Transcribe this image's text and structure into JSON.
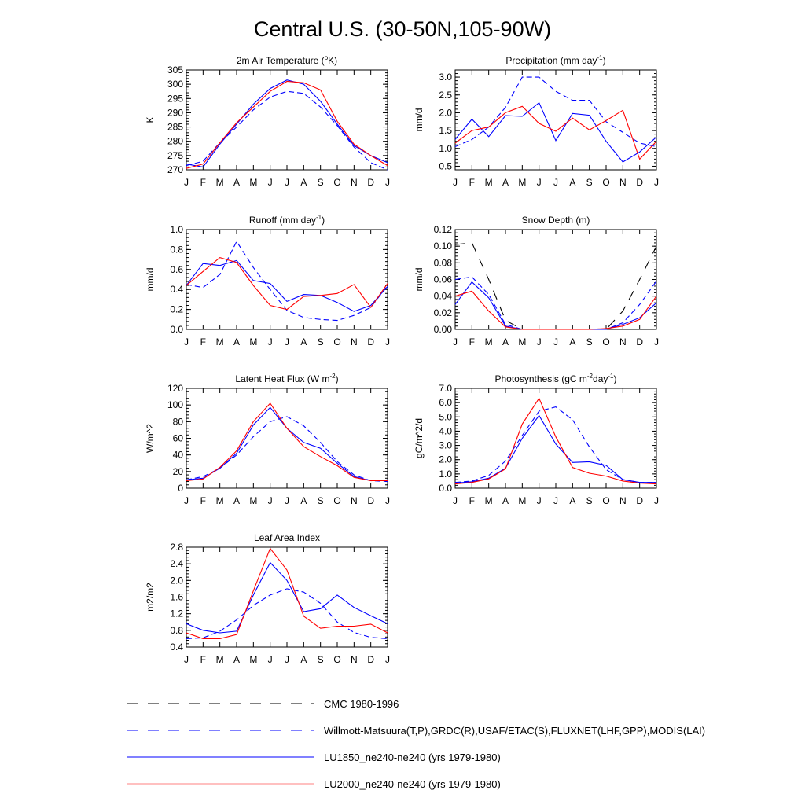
{
  "figure": {
    "title": "Central U.S. (30-50N,105-90W)"
  },
  "months": [
    "J",
    "F",
    "M",
    "A",
    "M",
    "J",
    "J",
    "A",
    "S",
    "O",
    "N",
    "D",
    "J"
  ],
  "series_styles": {
    "cmc": {
      "color": "#000000",
      "dash": "long"
    },
    "obs": {
      "color": "#0000ff",
      "dash": "medium"
    },
    "lu1850": {
      "color": "#0000ff",
      "dash": "solid"
    },
    "lu2000": {
      "color": "#ff0000",
      "dash": "solid"
    }
  },
  "legend": [
    {
      "key": "cmc",
      "label": "CMC 1980-1996"
    },
    {
      "key": "obs",
      "label": "Willmott-Matsuura(T,P),GRDC(R),USAF/ETAC(S),FLUXNET(LHF,GPP),MODIS(LAI)"
    },
    {
      "key": "lu1850",
      "label": "LU1850_ne240-ne240 (yrs 1979-1980)"
    },
    {
      "key": "lu2000",
      "label": "LU2000_ne240-ne240 (yrs 1979-1980)"
    }
  ],
  "chart_data": [
    {
      "type": "line",
      "id": "temperature",
      "title": "2m Air Temperature (",
      "title_sup": "o",
      "title_after": "K)",
      "ylabel": "K",
      "ylim": [
        270,
        305
      ],
      "yticks": [
        270,
        275,
        280,
        285,
        290,
        295,
        300,
        305
      ],
      "categories": [
        "J",
        "F",
        "M",
        "A",
        "M",
        "J",
        "J",
        "A",
        "S",
        "O",
        "N",
        "D",
        "J"
      ],
      "series": [
        {
          "key": "obs",
          "values": [
            271.5,
            273.0,
            279.5,
            285.0,
            291.0,
            295.5,
            297.5,
            296.8,
            292.0,
            285.5,
            278.0,
            272.5,
            270.0
          ]
        },
        {
          "key": "lu1850",
          "values": [
            272.0,
            271.0,
            279.0,
            286.0,
            293.0,
            298.5,
            301.5,
            300.0,
            294.0,
            286.0,
            278.5,
            275.0,
            272.5
          ]
        },
        {
          "key": "lu2000",
          "values": [
            270.5,
            272.0,
            279.5,
            286.5,
            292.0,
            297.5,
            301.0,
            300.5,
            298.0,
            287.0,
            279.0,
            275.0,
            271.5
          ]
        }
      ]
    },
    {
      "type": "line",
      "id": "precipitation",
      "title": "Precipitation (mm day",
      "title_sup": "-1",
      "title_after": ")",
      "ylabel": "mm/d",
      "ylim": [
        0.4,
        3.2
      ],
      "yticks": [
        0.5,
        1.0,
        1.5,
        2.0,
        2.5,
        3.0
      ],
      "ytick_format": "0.0",
      "categories": [
        "J",
        "F",
        "M",
        "A",
        "M",
        "J",
        "J",
        "A",
        "S",
        "O",
        "N",
        "D",
        "J"
      ],
      "series": [
        {
          "key": "obs",
          "values": [
            1.05,
            1.25,
            1.6,
            2.15,
            3.0,
            3.0,
            2.6,
            2.35,
            2.35,
            1.75,
            1.45,
            1.15,
            1.05
          ]
        },
        {
          "key": "lu1850",
          "values": [
            1.25,
            1.82,
            1.33,
            1.92,
            1.9,
            2.28,
            1.22,
            1.98,
            1.93,
            1.2,
            0.62,
            0.9,
            1.32
          ]
        },
        {
          "key": "lu2000",
          "values": [
            1.15,
            1.5,
            1.6,
            2.0,
            2.18,
            1.7,
            1.48,
            1.85,
            1.52,
            1.78,
            2.07,
            0.7,
            1.2
          ]
        }
      ]
    },
    {
      "type": "line",
      "id": "runoff",
      "title": "Runoff (mm day",
      "title_sup": "-1",
      "title_after": ")",
      "ylabel": "mm/d",
      "ylim": [
        0.0,
        1.0
      ],
      "yticks": [
        0.0,
        0.2,
        0.4,
        0.6,
        0.8,
        1.0
      ],
      "ytick_format": "0.0",
      "categories": [
        "J",
        "F",
        "M",
        "A",
        "M",
        "J",
        "J",
        "A",
        "S",
        "O",
        "N",
        "D",
        "J"
      ],
      "series": [
        {
          "key": "obs",
          "values": [
            0.45,
            0.42,
            0.55,
            0.88,
            0.62,
            0.4,
            0.19,
            0.12,
            0.1,
            0.09,
            0.14,
            0.22,
            0.44
          ]
        },
        {
          "key": "lu1850",
          "values": [
            0.44,
            0.66,
            0.64,
            0.69,
            0.49,
            0.46,
            0.28,
            0.35,
            0.34,
            0.27,
            0.18,
            0.24,
            0.43
          ]
        },
        {
          "key": "lu2000",
          "values": [
            0.44,
            0.58,
            0.72,
            0.67,
            0.44,
            0.24,
            0.2,
            0.33,
            0.34,
            0.36,
            0.45,
            0.22,
            0.46
          ]
        }
      ]
    },
    {
      "type": "line",
      "id": "snow-depth",
      "title": "Snow Depth (m)",
      "title_sup": "",
      "title_after": "",
      "ylabel": "mm/d",
      "ylim": [
        0.0,
        0.12
      ],
      "yticks": [
        0.0,
        0.02,
        0.04,
        0.06,
        0.08,
        0.1,
        0.12
      ],
      "ytick_format": "0.00",
      "categories": [
        "J",
        "F",
        "M",
        "A",
        "M",
        "J",
        "J",
        "A",
        "S",
        "O",
        "N",
        "D",
        "J"
      ],
      "series": [
        {
          "key": "cmc",
          "values": [
            0.102,
            0.104,
            0.06,
            0.011,
            0.0,
            0.0,
            0.0,
            0.0,
            0.0,
            0.0,
            0.022,
            0.06,
            0.1
          ]
        },
        {
          "key": "obs",
          "values": [
            0.06,
            0.063,
            0.042,
            0.006,
            0.0,
            0.0,
            0.0,
            0.0,
            0.0,
            0.0,
            0.008,
            0.03,
            0.058
          ]
        },
        {
          "key": "lu1850",
          "values": [
            0.03,
            0.057,
            0.038,
            0.004,
            0.0,
            0.0,
            0.0,
            0.0,
            0.0,
            0.0,
            0.006,
            0.014,
            0.032
          ]
        },
        {
          "key": "lu2000",
          "values": [
            0.04,
            0.046,
            0.022,
            0.003,
            0.0,
            0.0,
            0.0,
            0.0,
            0.0,
            0.001,
            0.004,
            0.012,
            0.04
          ]
        }
      ]
    },
    {
      "type": "line",
      "id": "latent-heat-flux",
      "title": "Latent Heat Flux (W m",
      "title_sup": "-2",
      "title_after": ")",
      "ylabel": "W/m^2",
      "ylim": [
        0,
        120
      ],
      "yticks": [
        0,
        20,
        40,
        60,
        80,
        100,
        120
      ],
      "categories": [
        "J",
        "F",
        "M",
        "A",
        "M",
        "J",
        "J",
        "A",
        "S",
        "O",
        "N",
        "D",
        "J"
      ],
      "series": [
        {
          "key": "obs",
          "values": [
            10,
            14,
            24,
            40,
            62,
            80,
            86,
            75,
            55,
            32,
            16,
            9,
            8
          ]
        },
        {
          "key": "lu1850",
          "values": [
            10,
            12,
            24,
            42,
            76,
            97,
            72,
            55,
            48,
            30,
            14,
            9,
            10
          ]
        },
        {
          "key": "lu2000",
          "values": [
            9,
            11,
            25,
            45,
            80,
            102,
            72,
            50,
            38,
            27,
            13,
            9,
            9
          ]
        }
      ]
    },
    {
      "type": "line",
      "id": "photosynthesis",
      "title": "Photosynthesis (gC m",
      "title_sup": "-2",
      "title_after": "day",
      "title_sup2": "-1",
      "title_after2": ")",
      "ylabel": "gC/m^2/d",
      "ylim": [
        0.0,
        7.0
      ],
      "yticks": [
        0.0,
        1.0,
        2.0,
        3.0,
        4.0,
        5.0,
        6.0,
        7.0
      ],
      "ytick_format": "0.0",
      "categories": [
        "J",
        "F",
        "M",
        "A",
        "M",
        "J",
        "J",
        "A",
        "S",
        "O",
        "N",
        "D",
        "J"
      ],
      "series": [
        {
          "key": "obs",
          "values": [
            0.4,
            0.5,
            0.9,
            1.9,
            3.7,
            5.4,
            5.7,
            4.8,
            2.9,
            1.3,
            0.6,
            0.4,
            0.4
          ]
        },
        {
          "key": "lu1850",
          "values": [
            0.35,
            0.45,
            0.7,
            1.4,
            3.5,
            5.1,
            3.1,
            1.8,
            1.85,
            1.6,
            0.6,
            0.4,
            0.4
          ]
        },
        {
          "key": "lu2000",
          "values": [
            0.3,
            0.4,
            0.65,
            1.35,
            4.5,
            6.3,
            3.6,
            1.45,
            1.05,
            0.85,
            0.5,
            0.35,
            0.3
          ]
        }
      ]
    },
    {
      "type": "line",
      "id": "leaf-area-index",
      "title": "Leaf Area Index",
      "title_sup": "",
      "title_after": "",
      "ylabel": "m2/m2",
      "ylim": [
        0.4,
        2.8
      ],
      "yticks": [
        0.4,
        0.8,
        1.2,
        1.6,
        2.0,
        2.4,
        2.8
      ],
      "ytick_format": "0.0",
      "categories": [
        "J",
        "F",
        "M",
        "A",
        "M",
        "J",
        "J",
        "A",
        "S",
        "O",
        "N",
        "D",
        "J"
      ],
      "series": [
        {
          "key": "obs",
          "values": [
            0.6,
            0.62,
            0.78,
            1.05,
            1.4,
            1.65,
            1.8,
            1.72,
            1.45,
            1.0,
            0.75,
            0.63,
            0.6
          ]
        },
        {
          "key": "lu1850",
          "values": [
            0.96,
            0.8,
            0.74,
            0.78,
            1.65,
            2.43,
            2.0,
            1.25,
            1.32,
            1.65,
            1.35,
            1.15,
            0.96
          ]
        },
        {
          "key": "lu2000",
          "values": [
            0.74,
            0.6,
            0.6,
            0.7,
            1.75,
            2.77,
            2.25,
            1.14,
            0.85,
            0.9,
            0.9,
            0.95,
            0.74
          ]
        }
      ]
    }
  ]
}
